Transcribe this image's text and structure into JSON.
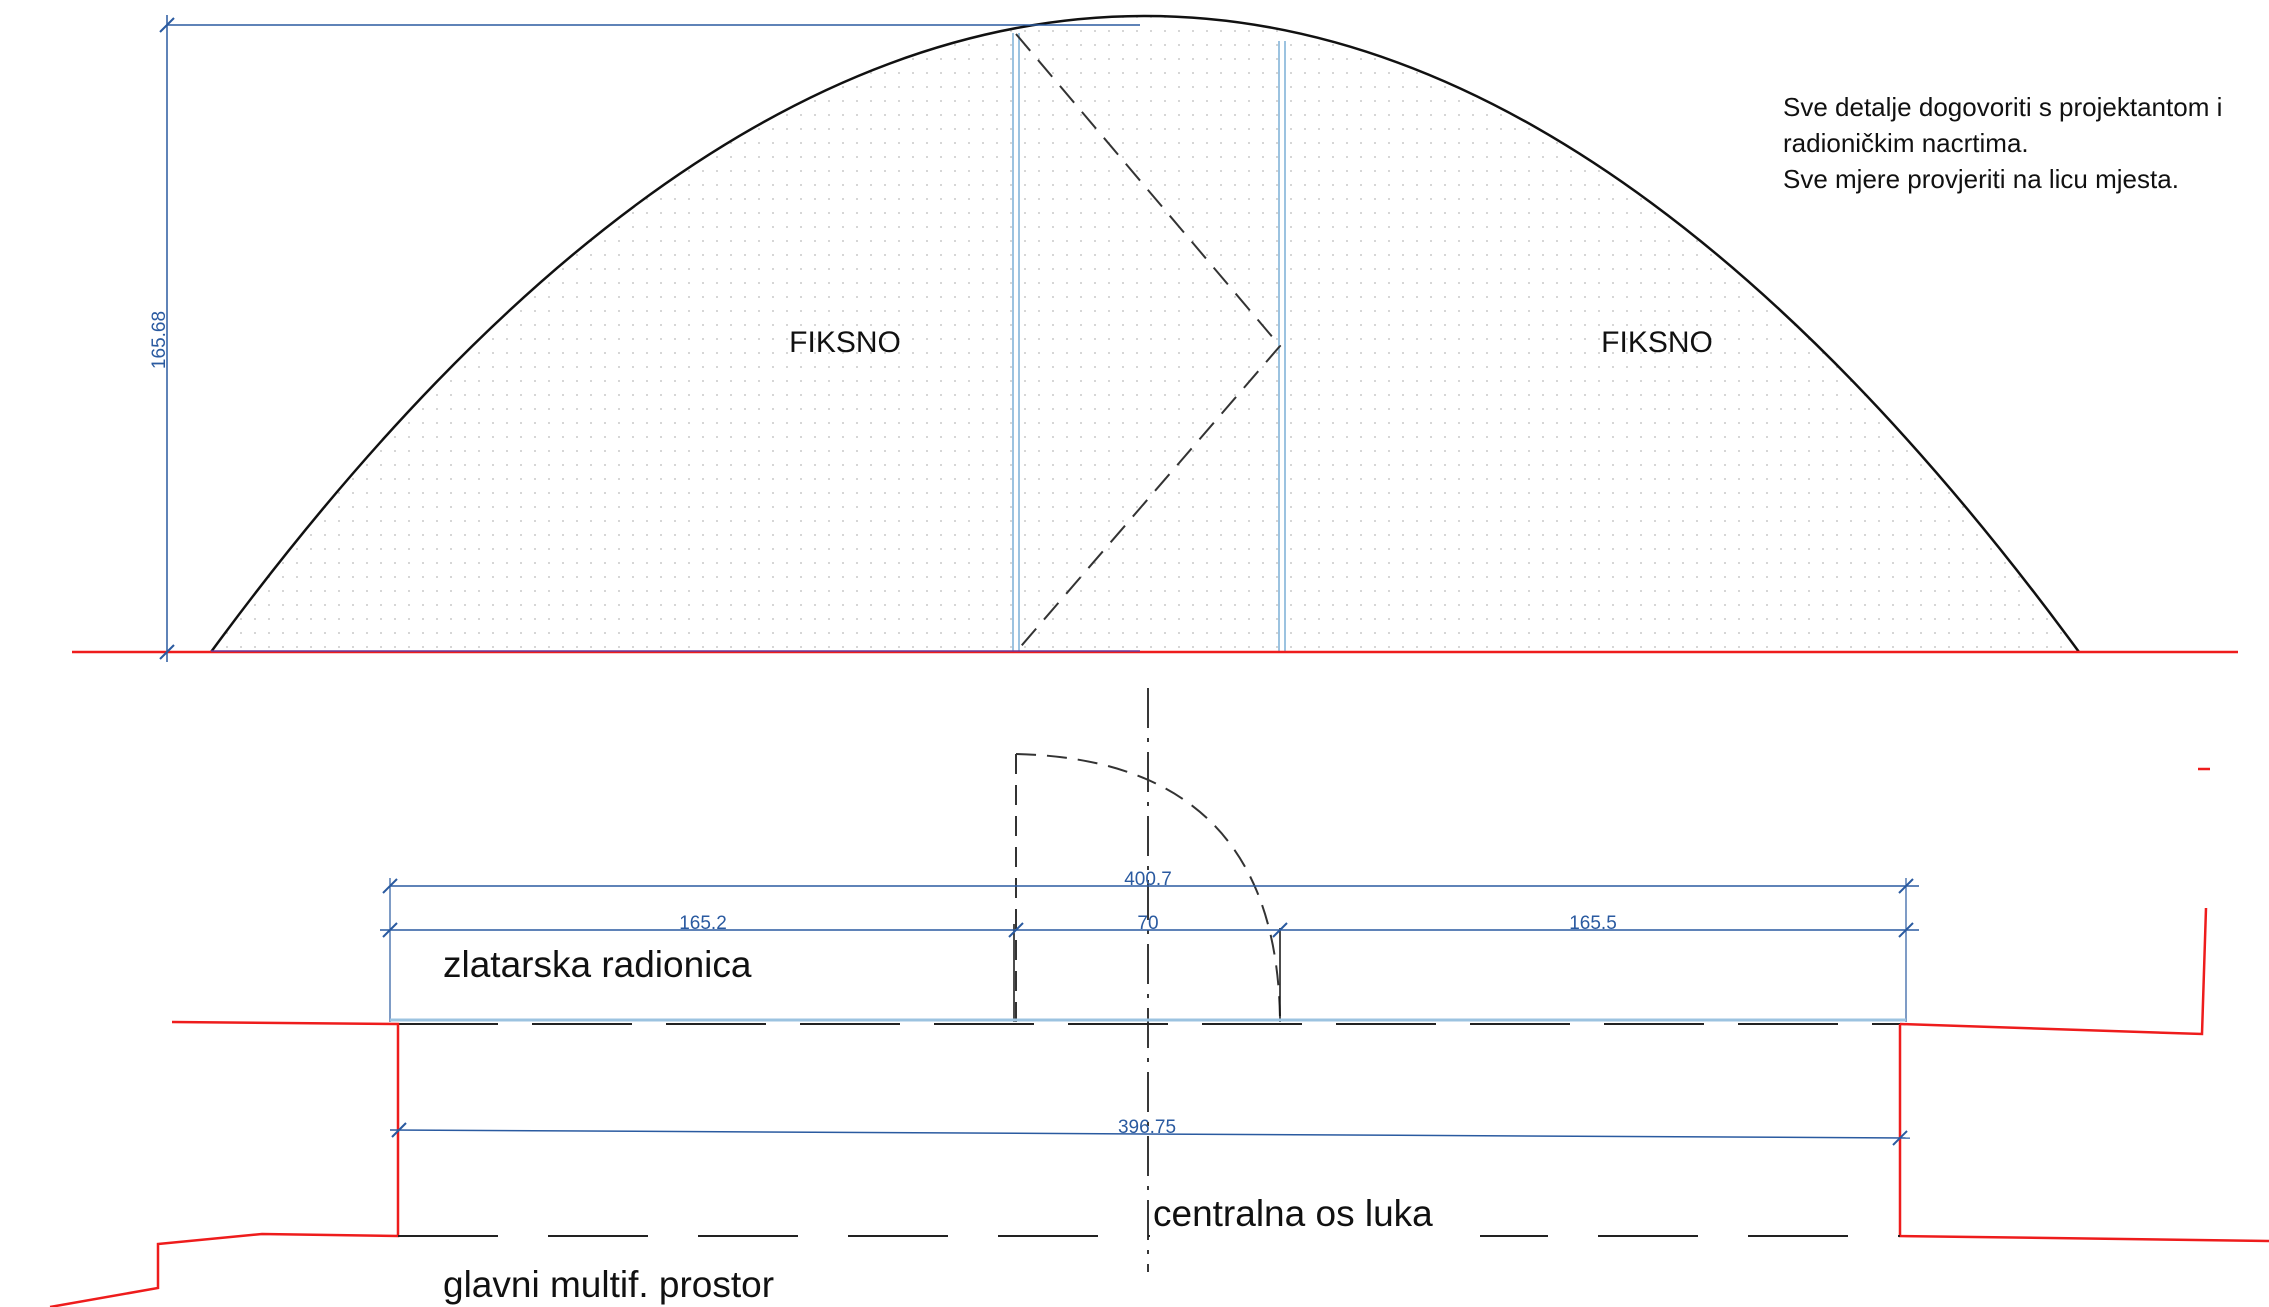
{
  "colors": {
    "outline": "#111111",
    "dimension": "#2a5aa0",
    "glazing": "#9cc3e0",
    "wall": "#ee1c1c",
    "fill_dots": "#c9c9c9"
  },
  "elevation": {
    "fixed_left_label": "FIKSNO",
    "fixed_right_label": "FIKSNO",
    "height_dimension": "165.68"
  },
  "notes": {
    "line1": "Sve detalje dogovoriti s projektantom i",
    "line2": "radioničkim nacrtima.",
    "line3": "Sve mjere provjeriti na licu mjesta."
  },
  "plan": {
    "dim_overall": "400.7",
    "dim_left": "165.2",
    "dim_door": "70",
    "dim_right": "165.5",
    "dim_inner": "396.75",
    "room_upper": "zlatarska radionica",
    "room_lower": "glavni multif. prostor",
    "axis_label": "centralna os luka"
  }
}
